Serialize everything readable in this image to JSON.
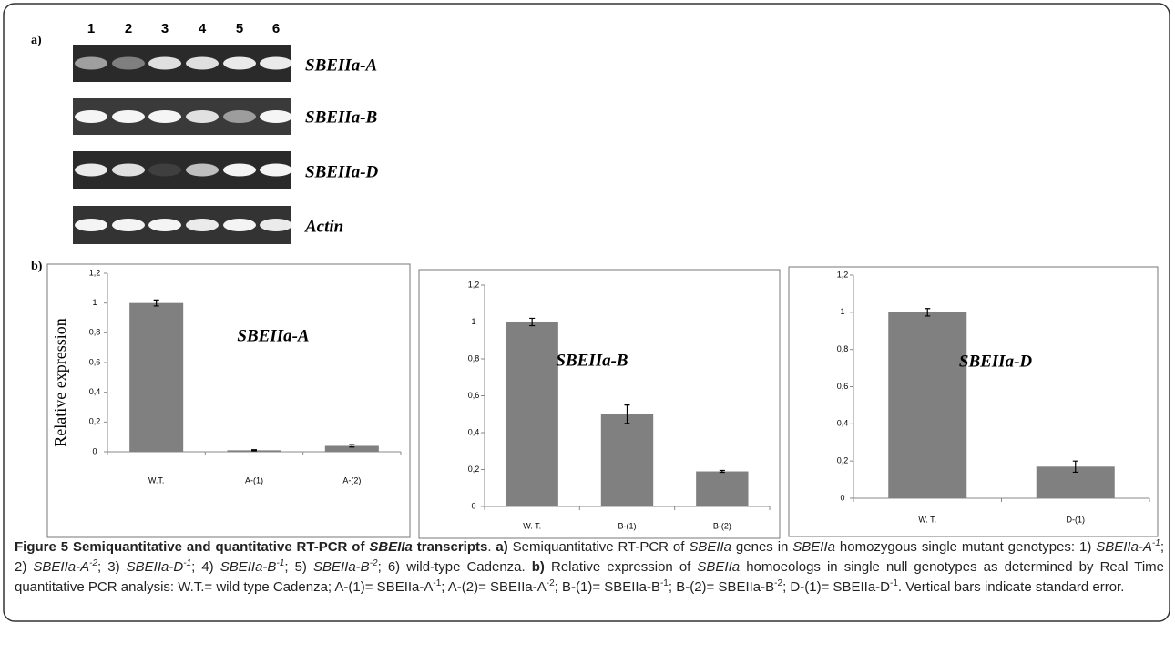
{
  "panel_a": {
    "label": "a)",
    "lanes": [
      "1",
      "2",
      "3",
      "4",
      "5",
      "6"
    ],
    "genes": [
      "SBEIIa-A",
      "SBEIIa-B",
      "SBEIIa-D",
      "Actin"
    ]
  },
  "panel_b": {
    "label": "b)"
  },
  "chart_data": [
    {
      "type": "bar",
      "title": "SBEIIa-A",
      "ylabel": "Relative expression",
      "categories": [
        "W.T.",
        "A-(1)",
        "A-(2)"
      ],
      "values": [
        1,
        0.01,
        0.04
      ],
      "errors": [
        0.02,
        0.004,
        0.008
      ],
      "color": "#808080",
      "ylim": [
        0,
        1.2
      ],
      "grid": false,
      "yticks": [
        0,
        {
          "value": 0.2,
          "label": "0,2"
        },
        {
          "value": 0.4,
          "label": "0,4"
        },
        {
          "value": 0.6,
          "label": "0,6"
        },
        {
          "value": 0.8,
          "label": "0,8"
        },
        1,
        {
          "value": 1.2,
          "label": "1,2"
        }
      ]
    },
    {
      "type": "bar",
      "title": "SBEIIa-B",
      "categories": [
        "W. T.",
        "B-(1)",
        "B-(2)"
      ],
      "values": [
        1,
        0.5,
        0.19
      ],
      "errors": [
        0.02,
        0.05,
        0.005
      ],
      "color": "#808080",
      "ylim": [
        0,
        1.2
      ],
      "grid": false,
      "yticks": [
        0,
        {
          "value": 0.2,
          "label": "0,2"
        },
        {
          "value": 0.4,
          "label": "0,4"
        },
        {
          "value": 0.6,
          "label": "0,6"
        },
        {
          "value": 0.8,
          "label": "0,8"
        },
        1,
        {
          "value": 1.2,
          "label": "1,2"
        }
      ]
    },
    {
      "type": "bar",
      "title": "SBEIIa-D",
      "categories": [
        "W. T.",
        "D-(1)"
      ],
      "values": [
        1,
        0.17
      ],
      "errors": [
        0.02,
        0.03
      ],
      "color": "#808080",
      "ylim": [
        0,
        1.2
      ],
      "grid": false,
      "yticks": [
        0,
        {
          "value": 0.2,
          "label": "0,2"
        },
        {
          "value": 0.4,
          "label": "0,4"
        },
        {
          "value": 0.6,
          "label": "0,6"
        },
        {
          "value": 0.8,
          "label": "0,8"
        },
        1,
        {
          "value": 1.2,
          "label": "1,2"
        }
      ]
    }
  ],
  "caption": {
    "runs": [
      "Figure 5 Semiquantitative and quantitative RT-PCR of ",
      "SBEIIa",
      " transcripts",
      ". ",
      "a)",
      " Semiquantitative RT-PCR of ",
      "SBEIIa",
      " genes in ",
      "SBEIIa",
      " homozygous single mutant genotypes: 1) ",
      "SBEIIa-A",
      "-1",
      "; 2) ",
      "SBEIIa-A",
      "-2",
      "; 3) ",
      "SBEIIa-D",
      "-1",
      "; 4) ",
      "SBEIIa-B",
      "-1",
      "; 5) ",
      "SBEIIa-B",
      "-2",
      "; 6) wild-type Cadenza. ",
      "b)",
      " Relative expression of ",
      "SBEIIa",
      " homoeologs in single null genotypes as determined by Real Time quantitative PCR analysis: W.T.= wild type Cadenza; A-(1)= SBEIIa-A",
      "-1",
      "; A-(2)= SBEIIa-A",
      "-2",
      "; B-(1)= SBEIIa-B",
      "-1",
      "; B-(2)= SBEIIa-B",
      "-2",
      "; D-(1)= SBEIIa-D",
      "-1",
      ". Vertical bars indicate standard error."
    ]
  }
}
